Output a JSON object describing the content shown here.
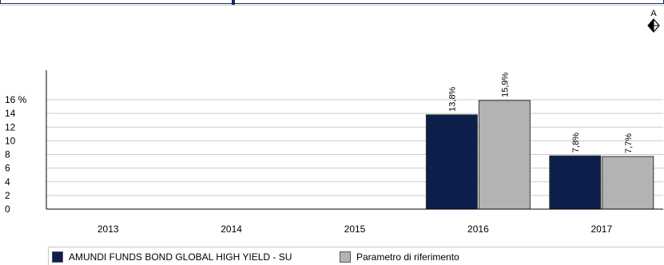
{
  "rating": {
    "label": "A",
    "icon": "diamond-arrows-icon"
  },
  "chart_data": {
    "type": "bar",
    "categories": [
      "2013",
      "2014",
      "2015",
      "2016",
      "2017"
    ],
    "series": [
      {
        "name": "AMUNDI FUNDS BOND GLOBAL HIGH YIELD - SU",
        "color": "#0d1e4a",
        "values": [
          null,
          null,
          null,
          13.8,
          7.8
        ],
        "labels": [
          null,
          null,
          null,
          "13,8%",
          "7,8%"
        ]
      },
      {
        "name": "Parametro di riferimento",
        "color": "#b3b3b3",
        "values": [
          null,
          null,
          null,
          15.9,
          7.7
        ],
        "labels": [
          null,
          null,
          null,
          "15,9%",
          "7,7%"
        ]
      }
    ],
    "y_ticks": [
      0,
      2,
      4,
      6,
      8,
      10,
      12,
      14,
      16
    ],
    "y_tick_labels": [
      "0",
      "2",
      "4",
      "6",
      "8",
      "10",
      "12",
      "14",
      "16 %"
    ],
    "ylim": [
      0,
      16
    ],
    "grid": true,
    "legend_position": "bottom-left"
  }
}
